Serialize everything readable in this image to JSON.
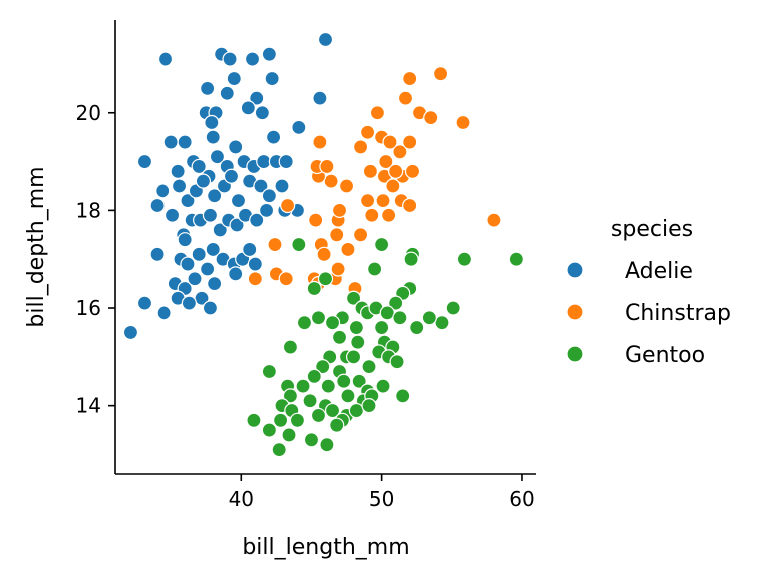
{
  "chart_data": {
    "type": "scatter",
    "xlabel": "bill_length_mm",
    "ylabel": "bill_depth_mm",
    "xlim": [
      31,
      61
    ],
    "ylim": [
      12.6,
      21.9
    ],
    "xticks": [
      40,
      50,
      60
    ],
    "yticks": [
      14,
      16,
      18,
      20
    ],
    "grid": false,
    "legend": {
      "title": "species",
      "placement": "right"
    },
    "series": [
      {
        "name": "Adelie",
        "color": "#1f77b4",
        "points": [
          [
            34.6,
            21.1
          ],
          [
            38.6,
            21.2
          ],
          [
            39.2,
            21.1
          ],
          [
            40.8,
            21.1
          ],
          [
            42.0,
            21.2
          ],
          [
            46.0,
            21.5
          ],
          [
            37.6,
            20.5
          ],
          [
            39.5,
            20.7
          ],
          [
            39.0,
            20.4
          ],
          [
            42.2,
            20.7
          ],
          [
            41.1,
            20.3
          ],
          [
            45.6,
            20.3
          ],
          [
            37.5,
            20.0
          ],
          [
            38.2,
            20.0
          ],
          [
            40.5,
            20.1
          ],
          [
            41.5,
            20.0
          ],
          [
            37.9,
            19.8
          ],
          [
            35.0,
            19.4
          ],
          [
            36.0,
            19.4
          ],
          [
            38.0,
            19.5
          ],
          [
            39.6,
            19.3
          ],
          [
            42.3,
            19.5
          ],
          [
            44.1,
            19.7
          ],
          [
            33.1,
            19.0
          ],
          [
            35.5,
            18.8
          ],
          [
            36.6,
            19.0
          ],
          [
            37.0,
            18.9
          ],
          [
            37.7,
            18.7
          ],
          [
            38.3,
            19.1
          ],
          [
            39.0,
            18.9
          ],
          [
            40.2,
            19.0
          ],
          [
            40.9,
            18.9
          ],
          [
            41.6,
            19.0
          ],
          [
            42.5,
            19.0
          ],
          [
            43.2,
            19.0
          ],
          [
            34.1,
            18.1
          ],
          [
            34.4,
            18.4
          ],
          [
            35.6,
            18.5
          ],
          [
            36.2,
            18.2
          ],
          [
            36.8,
            18.4
          ],
          [
            37.3,
            18.6
          ],
          [
            38.1,
            18.3
          ],
          [
            38.8,
            18.5
          ],
          [
            39.3,
            18.7
          ],
          [
            39.8,
            18.2
          ],
          [
            40.6,
            18.6
          ],
          [
            41.4,
            18.5
          ],
          [
            42.0,
            18.3
          ],
          [
            42.9,
            18.5
          ],
          [
            44.0,
            18.0
          ],
          [
            34.0,
            18.1
          ],
          [
            35.1,
            17.9
          ],
          [
            35.9,
            17.5
          ],
          [
            36.5,
            17.8
          ],
          [
            37.1,
            17.8
          ],
          [
            37.8,
            17.9
          ],
          [
            38.5,
            17.6
          ],
          [
            39.1,
            17.8
          ],
          [
            39.7,
            17.7
          ],
          [
            40.3,
            17.9
          ],
          [
            41.1,
            17.8
          ],
          [
            41.8,
            18.0
          ],
          [
            43.1,
            18.0
          ],
          [
            34.0,
            17.1
          ],
          [
            35.7,
            17.0
          ],
          [
            36.2,
            16.9
          ],
          [
            37.0,
            17.1
          ],
          [
            37.6,
            16.8
          ],
          [
            38.0,
            17.2
          ],
          [
            38.7,
            17.0
          ],
          [
            39.5,
            16.9
          ],
          [
            40.1,
            17.0
          ],
          [
            40.6,
            17.2
          ],
          [
            41.0,
            16.9
          ],
          [
            36.0,
            17.4
          ],
          [
            35.3,
            16.5
          ],
          [
            36.0,
            16.4
          ],
          [
            36.7,
            16.6
          ],
          [
            37.2,
            16.2
          ],
          [
            38.1,
            16.5
          ],
          [
            39.6,
            16.7
          ],
          [
            35.5,
            16.2
          ],
          [
            36.3,
            16.1
          ],
          [
            37.8,
            16.0
          ],
          [
            34.5,
            15.9
          ],
          [
            33.1,
            16.1
          ],
          [
            32.1,
            15.5
          ]
        ]
      },
      {
        "name": "Chinstrap",
        "color": "#ff7f0e",
        "points": [
          [
            52.0,
            20.7
          ],
          [
            54.2,
            20.8
          ],
          [
            51.7,
            20.3
          ],
          [
            49.7,
            20.0
          ],
          [
            52.7,
            20.0
          ],
          [
            53.5,
            19.9
          ],
          [
            55.8,
            19.8
          ],
          [
            50.0,
            19.5
          ],
          [
            51.3,
            19.2
          ],
          [
            50.6,
            19.4
          ],
          [
            52.0,
            19.4
          ],
          [
            49.0,
            19.6
          ],
          [
            48.5,
            19.3
          ],
          [
            50.3,
            19.0
          ],
          [
            49.2,
            18.8
          ],
          [
            51.5,
            18.7
          ],
          [
            46.4,
            18.6
          ],
          [
            45.5,
            18.7
          ],
          [
            50.2,
            18.7
          ],
          [
            51.0,
            18.8
          ],
          [
            47.5,
            18.5
          ],
          [
            50.8,
            18.5
          ],
          [
            52.2,
            18.8
          ],
          [
            45.4,
            18.9
          ],
          [
            45.6,
            19.4
          ],
          [
            46.1,
            18.9
          ],
          [
            49.0,
            18.2
          ],
          [
            50.1,
            18.2
          ],
          [
            51.4,
            18.2
          ],
          [
            52.0,
            18.1
          ],
          [
            43.3,
            18.1
          ],
          [
            46.9,
            17.8
          ],
          [
            47.0,
            18.0
          ],
          [
            45.3,
            17.8
          ],
          [
            49.3,
            17.9
          ],
          [
            50.5,
            17.9
          ],
          [
            58.0,
            17.8
          ],
          [
            45.7,
            17.3
          ],
          [
            46.8,
            17.5
          ],
          [
            48.5,
            17.5
          ],
          [
            45.9,
            17.1
          ],
          [
            47.6,
            17.2
          ],
          [
            50.0,
            17.3
          ],
          [
            42.4,
            17.3
          ],
          [
            42.5,
            16.7
          ],
          [
            43.2,
            16.6
          ],
          [
            41.0,
            16.6
          ],
          [
            46.7,
            16.6
          ],
          [
            46.9,
            16.8
          ],
          [
            45.2,
            16.6
          ],
          [
            48.1,
            16.4
          ],
          [
            45.5,
            16.5
          ]
        ]
      },
      {
        "name": "Gentoo",
        "color": "#2ca02c",
        "points": [
          [
            59.6,
            17.0
          ],
          [
            55.9,
            17.0
          ],
          [
            52.2,
            17.1
          ],
          [
            44.1,
            17.3
          ],
          [
            50.0,
            17.3
          ],
          [
            49.5,
            16.8
          ],
          [
            52.0,
            16.4
          ],
          [
            51.5,
            16.3
          ],
          [
            51.0,
            16.1
          ],
          [
            46.0,
            16.6
          ],
          [
            45.2,
            16.4
          ],
          [
            48.0,
            16.2
          ],
          [
            48.6,
            16.0
          ],
          [
            47.2,
            15.8
          ],
          [
            49.0,
            15.9
          ],
          [
            49.6,
            16.0
          ],
          [
            50.4,
            15.9
          ],
          [
            51.3,
            15.8
          ],
          [
            46.5,
            15.7
          ],
          [
            44.5,
            15.7
          ],
          [
            45.5,
            15.8
          ],
          [
            48.2,
            15.6
          ],
          [
            50.0,
            15.6
          ],
          [
            52.5,
            15.6
          ],
          [
            54.3,
            15.7
          ],
          [
            53.4,
            15.8
          ],
          [
            55.1,
            16.0
          ],
          [
            47.0,
            15.4
          ],
          [
            48.3,
            15.3
          ],
          [
            50.2,
            15.3
          ],
          [
            50.8,
            15.2
          ],
          [
            49.8,
            15.1
          ],
          [
            43.5,
            15.2
          ],
          [
            47.5,
            15.0
          ],
          [
            46.3,
            15.0
          ],
          [
            45.8,
            14.8
          ],
          [
            47.0,
            14.7
          ],
          [
            48.0,
            15.0
          ],
          [
            49.1,
            14.8
          ],
          [
            50.5,
            15.0
          ],
          [
            51.1,
            14.9
          ],
          [
            52.1,
            17.0
          ],
          [
            42.0,
            14.7
          ],
          [
            43.3,
            14.4
          ],
          [
            44.4,
            14.4
          ],
          [
            45.2,
            14.6
          ],
          [
            46.2,
            14.4
          ],
          [
            47.3,
            14.5
          ],
          [
            48.4,
            14.5
          ],
          [
            49.0,
            14.3
          ],
          [
            50.1,
            14.4
          ],
          [
            43.5,
            14.2
          ],
          [
            44.9,
            14.1
          ],
          [
            46.0,
            14.0
          ],
          [
            47.6,
            14.2
          ],
          [
            48.7,
            14.1
          ],
          [
            49.3,
            14.2
          ],
          [
            51.5,
            14.2
          ],
          [
            42.9,
            14.0
          ],
          [
            43.6,
            13.9
          ],
          [
            44.0,
            13.7
          ],
          [
            45.5,
            13.8
          ],
          [
            46.5,
            13.9
          ],
          [
            47.5,
            13.8
          ],
          [
            48.2,
            13.9
          ],
          [
            49.1,
            14.0
          ],
          [
            40.9,
            13.7
          ],
          [
            42.8,
            13.7
          ],
          [
            43.4,
            13.4
          ],
          [
            45.0,
            13.3
          ],
          [
            46.1,
            13.2
          ],
          [
            47.2,
            13.7
          ],
          [
            42.0,
            13.5
          ],
          [
            42.7,
            13.1
          ],
          [
            46.8,
            13.6
          ]
        ]
      }
    ]
  }
}
